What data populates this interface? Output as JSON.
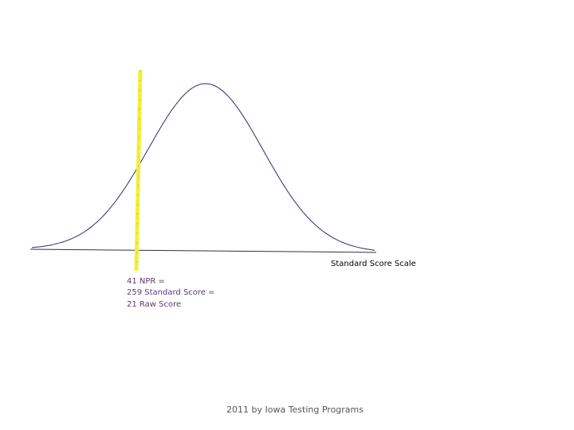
{
  "axis_label": "Standard Score Scale",
  "marker_labels": [
    "41 NPR =",
    "259 Standard Score =",
    "21 Raw Score"
  ],
  "footer": "2011 by Iowa Testing Programs"
}
